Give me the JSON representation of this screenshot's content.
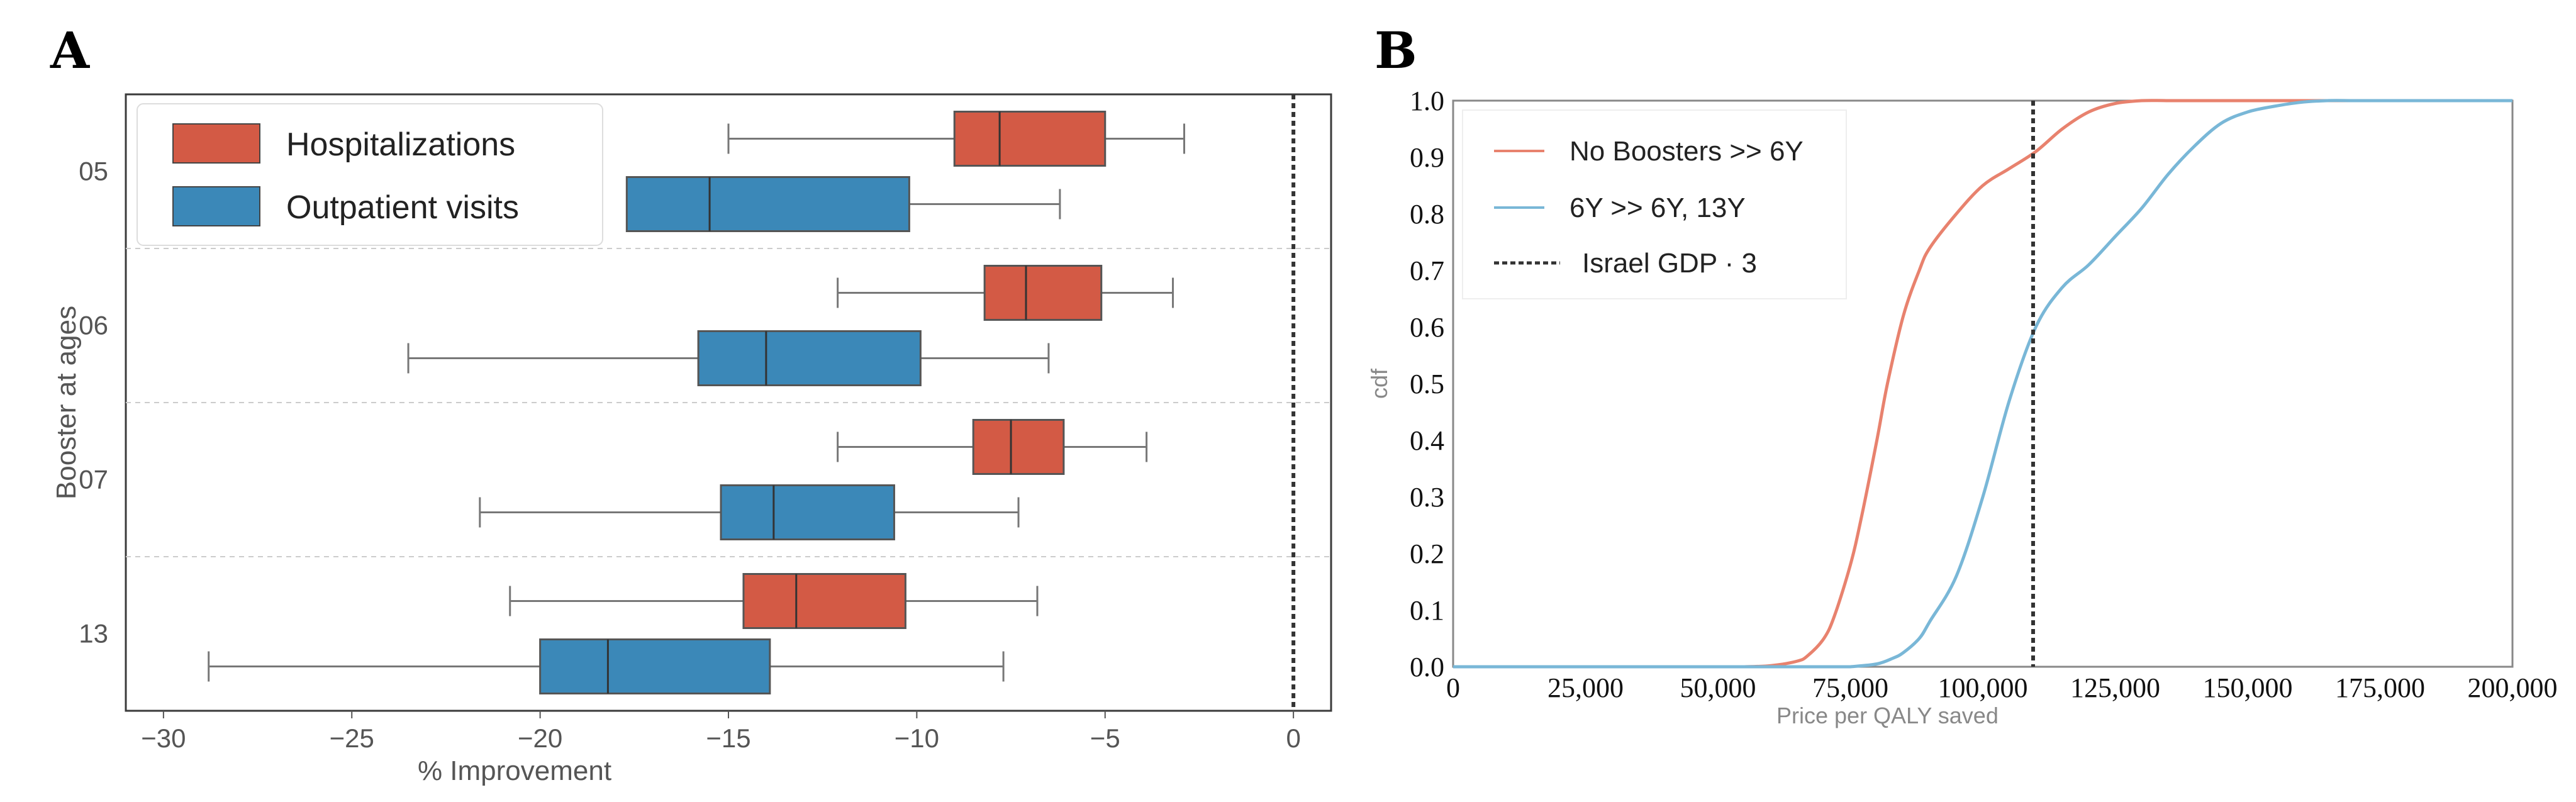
{
  "panel_a_letter": "A",
  "panel_b_letter": "B",
  "chart_data": [
    {
      "type": "box",
      "orientation": "horizontal",
      "title": "",
      "xlabel": "% Improvement",
      "ylabel": "Booster at ages",
      "xlim": [
        -31,
        1
      ],
      "xticks": [
        -30,
        -25,
        -20,
        -15,
        -10,
        -5,
        0
      ],
      "xtick_labels": [
        "−30",
        "−25",
        "−20",
        "−15",
        "−10",
        "−5",
        "0"
      ],
      "groups": [
        "05",
        "06",
        "07",
        "13"
      ],
      "vline": 0,
      "legend": [
        {
          "name": "Hospitalizations",
          "color": "#d35a45"
        },
        {
          "name": "Outpatient visits",
          "color": "#3b88b8"
        }
      ],
      "series": [
        {
          "name": "Hospitalizations",
          "color": "#d35a45",
          "boxes": [
            {
              "group": "05",
              "whislo": -15,
              "q1": -9,
              "med": -7.8,
              "q3": -5,
              "whishi": -2.9
            },
            {
              "group": "06",
              "whislo": -12.1,
              "q1": -8.2,
              "med": -7.1,
              "q3": -5.1,
              "whishi": -3.2
            },
            {
              "group": "07",
              "whislo": -12.1,
              "q1": -8.5,
              "med": -7.5,
              "q3": -6.1,
              "whishi": -3.9
            },
            {
              "group": "13",
              "whislo": -20.8,
              "q1": -14.6,
              "med": -13.2,
              "q3": -10.3,
              "whishi": -6.8
            }
          ]
        },
        {
          "name": "Outpatient visits",
          "color": "#3b88b8",
          "boxes": [
            {
              "group": "05",
              "whislo": null,
              "q1": -17.7,
              "med": -15.5,
              "q3": -10.2,
              "whishi": -6.2
            },
            {
              "group": "06",
              "whislo": -23.5,
              "q1": -15.8,
              "med": -14,
              "q3": -9.9,
              "whishi": -6.5
            },
            {
              "group": "07",
              "whislo": -21.6,
              "q1": -15.2,
              "med": -13.8,
              "q3": -10.6,
              "whishi": -7.3
            },
            {
              "group": "13",
              "whislo": -28.8,
              "q1": -20,
              "med": -18.2,
              "q3": -13.9,
              "whishi": -7.7
            }
          ]
        }
      ]
    },
    {
      "type": "line",
      "title": "",
      "xlabel": "Price per QALY saved",
      "ylabel": "cdf",
      "xlim": [
        0,
        200000
      ],
      "ylim": [
        0,
        1
      ],
      "xticks": [
        0,
        25000,
        50000,
        75000,
        100000,
        125000,
        150000,
        175000,
        200000
      ],
      "xtick_labels": [
        "0",
        "25,000",
        "50,000",
        "75,000",
        "100,000",
        "125,000",
        "150,000",
        "175,000",
        "200,000"
      ],
      "yticks": [
        0,
        0.1,
        0.2,
        0.3,
        0.4,
        0.5,
        0.6,
        0.7,
        0.8,
        0.9,
        1
      ],
      "ytick_labels": [
        "0.0",
        "0.1",
        "0.2",
        "0.3",
        "0.4",
        "0.5",
        "0.6",
        "0.7",
        "0.8",
        "0.9",
        "1.0"
      ],
      "vline": {
        "x": 109500,
        "label": "Israel GDP · 3",
        "style": "dashed",
        "color": "#333333"
      },
      "series": [
        {
          "name": "No Boosters >> 6Y",
          "color": "#e8826e",
          "x": [
            55000,
            60000,
            65000,
            67000,
            70000,
            72000,
            75000,
            77000,
            80000,
            82000,
            85000,
            88000,
            90000,
            95000,
            100000,
            105000,
            110000,
            115000,
            120000,
            125000,
            130000,
            135000
          ],
          "y": [
            0,
            0.002,
            0.01,
            0.02,
            0.05,
            0.09,
            0.18,
            0.26,
            0.4,
            0.5,
            0.62,
            0.7,
            0.74,
            0.8,
            0.85,
            0.88,
            0.91,
            0.95,
            0.98,
            0.995,
            1,
            1
          ]
        },
        {
          "name": "6Y >> 6Y, 13Y",
          "color": "#79b7d7",
          "x": [
            75000,
            80000,
            83000,
            85000,
            88000,
            90000,
            95000,
            100000,
            105000,
            110000,
            115000,
            120000,
            125000,
            130000,
            135000,
            140000,
            145000,
            150000,
            155000,
            160000,
            165000,
            170000,
            175000
          ],
          "y": [
            0,
            0.005,
            0.015,
            0.025,
            0.05,
            0.08,
            0.16,
            0.3,
            0.47,
            0.6,
            0.67,
            0.71,
            0.76,
            0.81,
            0.87,
            0.92,
            0.96,
            0.98,
            0.99,
            0.997,
            1,
            1,
            1
          ]
        }
      ],
      "legend": [
        {
          "name": "No Boosters >> 6Y",
          "color": "#e8826e",
          "style": "solid"
        },
        {
          "name": "6Y >> 6Y, 13Y",
          "color": "#79b7d7",
          "style": "solid"
        },
        {
          "name": "Israel GDP · 3",
          "color": "#333333",
          "style": "dashed"
        }
      ]
    }
  ]
}
